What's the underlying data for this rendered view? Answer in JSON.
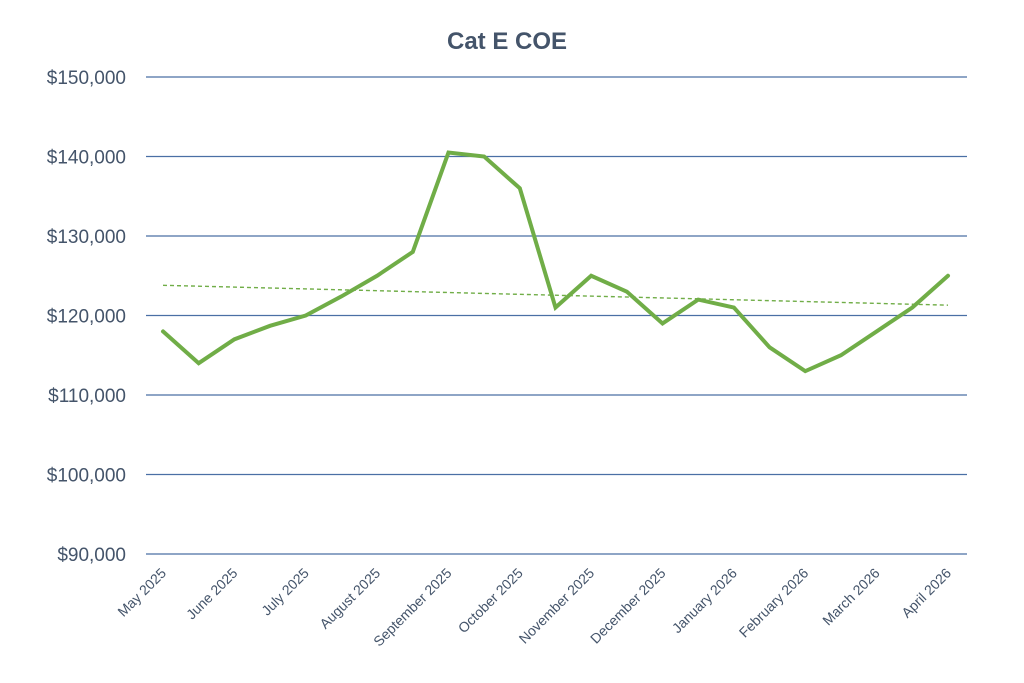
{
  "chart_data": {
    "type": "line",
    "title": "Cat E COE",
    "xlabel": "",
    "ylabel": "",
    "ylim": [
      90000,
      150000
    ],
    "yticks": [
      90000,
      100000,
      110000,
      120000,
      130000,
      140000,
      150000
    ],
    "ytick_labels": [
      "$90,000",
      "$100,000",
      "$110,000",
      "$120,000",
      "$130,000",
      "$140,000",
      "$150,000"
    ],
    "x_tick_labels": [
      "May 2025",
      "June 2025",
      "July 2025",
      "August 2025",
      "September 2025",
      "October 2025",
      "November 2025",
      "December 2025",
      "January 2026",
      "February 2026",
      "March 2026",
      "April 2026"
    ],
    "x": [
      0,
      0.5,
      1,
      1.5,
      2,
      2.5,
      3,
      3.5,
      4,
      4.5,
      5,
      5.5,
      6,
      6.5,
      7,
      7.5,
      8,
      8.5,
      9,
      9.5,
      10,
      10.5,
      11
    ],
    "series": [
      {
        "color": "#70ad47",
        "values": [
          118000,
          114000,
          117000,
          118700,
          120000,
          122400,
          125000,
          128000,
          140500,
          140000,
          136000,
          121000,
          125000,
          123000,
          119000,
          122000,
          121000,
          116000,
          113000,
          115000,
          118000,
          121000,
          125000
        ]
      }
    ],
    "trendline": {
      "style": "dashed-linear",
      "color": "#70ad47",
      "start": 123800,
      "end": 121300
    },
    "grid": true,
    "legend": "none"
  }
}
